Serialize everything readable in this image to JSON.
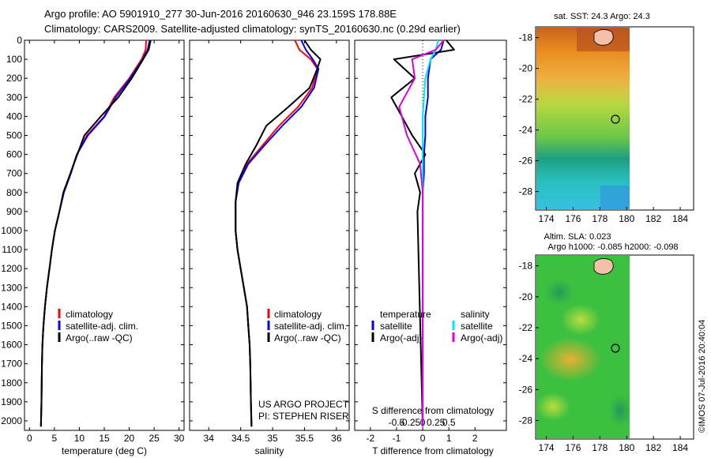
{
  "header": {
    "line1": "Argo profile: AO 5901910_277 30-Jun-2016 20160630_946 23.159S 178.88E",
    "line2": "Climatology: CARS2009. Satellite-adjusted climatology: synTS_20160630.nc (0.29d earlier)"
  },
  "colors": {
    "climatology": "#ff0000",
    "satellite": "#0000ff",
    "argo": "#000000",
    "salinity_satellite": "#00e5ee",
    "salinity_argo": "#dd00dd"
  },
  "panels": {
    "temperature": {
      "xlabel": "temperature (deg C)",
      "legend": [
        "climatology",
        "satellite-adj. clim.",
        "Argo(..raw -QC)"
      ]
    },
    "salinity": {
      "xlabel": "salinity",
      "legend": [
        "climatology",
        "satellite-adj. clim.",
        "Argo(..raw -QC)"
      ],
      "project": "US ARGO PROJECT",
      "pi": "PI: STEPHEN RISER"
    },
    "difference": {
      "xlabel": "T difference from climatology",
      "top_label": "S difference from climatology",
      "legend_temperature_title": "temperature",
      "legend_temperature": [
        "satellite",
        "Argo(-adj)"
      ],
      "legend_salinity_title": "salinity",
      "legend_salinity": [
        "satellite",
        "Argo(-adj)"
      ]
    },
    "map_sst": {
      "title": "sat. SST: 24.3  Argo: 24.3"
    },
    "map_sla": {
      "title1": "Altim. SLA: 0.023",
      "title2": "Argo h1000: -0.085 h2000: -0.098"
    }
  },
  "footer": {
    "credit": "©IMOS 07-Jul-2016 20:40:04"
  },
  "chart_data": [
    {
      "type": "line",
      "title": "",
      "xlabel": "temperature (deg C)",
      "ylabel": "",
      "xlim": [
        -1,
        31
      ],
      "ylim": [
        2050,
        0
      ],
      "xticks": [
        0,
        5,
        10,
        15,
        20,
        25,
        30
      ],
      "yticks": [
        0,
        100,
        200,
        300,
        400,
        500,
        600,
        700,
        800,
        900,
        1000,
        1100,
        1200,
        1300,
        1400,
        1500,
        1600,
        1700,
        1800,
        1900,
        2000
      ],
      "series": [
        {
          "name": "climatology",
          "x": [
            23.4,
            23.3,
            22.5,
            20.0,
            17.0,
            15.0,
            11.5,
            9.5,
            8.2,
            6.8,
            6.0,
            5.1,
            4.5,
            4.0,
            3.5,
            3.1,
            2.8,
            2.6,
            2.5,
            2.4,
            2.3
          ],
          "y": [
            0,
            50,
            100,
            200,
            300,
            400,
            500,
            600,
            700,
            800,
            900,
            1000,
            1100,
            1200,
            1300,
            1400,
            1500,
            1600,
            1700,
            1900,
            2030
          ]
        },
        {
          "name": "satellite-adj. clim.",
          "x": [
            24.1,
            23.7,
            22.7,
            20.2,
            17.3,
            15.1,
            11.7,
            9.5,
            8.3,
            6.9,
            6.0,
            5.1,
            4.5,
            4.0,
            3.5,
            3.1,
            2.8,
            2.6,
            2.5,
            2.4,
            2.3
          ],
          "y": [
            0,
            50,
            100,
            200,
            300,
            400,
            500,
            600,
            700,
            800,
            900,
            1000,
            1100,
            1200,
            1300,
            1400,
            1500,
            1600,
            1700,
            1900,
            2030
          ]
        },
        {
          "name": "Argo(..raw -QC)",
          "x": [
            24.3,
            23.9,
            22.8,
            20.5,
            17.8,
            14.3,
            11.0,
            9.6,
            8.2,
            6.8,
            6.0,
            5.1,
            4.5,
            4.0,
            3.5,
            3.1,
            2.8,
            2.6,
            2.5,
            2.4,
            2.3
          ],
          "y": [
            0,
            50,
            100,
            200,
            300,
            400,
            500,
            600,
            700,
            800,
            900,
            1000,
            1100,
            1200,
            1300,
            1400,
            1500,
            1600,
            1700,
            1900,
            2030
          ]
        }
      ]
    },
    {
      "type": "line",
      "xlabel": "salinity",
      "xlim": [
        33.7,
        36.2
      ],
      "ylim": [
        2050,
        0
      ],
      "xticks": [
        34,
        34.5,
        35,
        35.5,
        36
      ],
      "series": [
        {
          "name": "climatology",
          "x": [
            35.35,
            35.42,
            35.6,
            35.7,
            35.62,
            35.4,
            35.1,
            34.85,
            34.6,
            34.46,
            34.42,
            34.42,
            34.45,
            34.5,
            34.55,
            34.6,
            34.62,
            34.64,
            34.65,
            34.66,
            34.67
          ],
          "y": [
            0,
            50,
            100,
            150,
            250,
            350,
            450,
            550,
            650,
            750,
            850,
            1000,
            1100,
            1200,
            1300,
            1400,
            1500,
            1600,
            1700,
            1900,
            2030
          ]
        },
        {
          "name": "satellite-adj. clim.",
          "x": [
            35.45,
            35.52,
            35.63,
            35.72,
            35.65,
            35.45,
            35.15,
            34.88,
            34.62,
            34.47,
            34.42,
            34.42,
            34.45,
            34.5,
            34.55,
            34.6,
            34.62,
            34.64,
            34.65,
            34.66,
            34.67
          ],
          "y": [
            0,
            50,
            100,
            150,
            250,
            350,
            450,
            550,
            650,
            750,
            850,
            1000,
            1100,
            1200,
            1300,
            1400,
            1500,
            1600,
            1700,
            1900,
            2030
          ]
        },
        {
          "name": "Argo(..raw -QC)",
          "x": [
            35.5,
            35.6,
            35.75,
            35.7,
            35.58,
            35.25,
            34.9,
            34.75,
            34.58,
            34.45,
            34.42,
            34.42,
            34.45,
            34.5,
            34.55,
            34.6,
            34.62,
            34.64,
            34.65,
            34.66,
            34.67
          ],
          "y": [
            0,
            50,
            100,
            150,
            250,
            350,
            450,
            550,
            650,
            750,
            850,
            1000,
            1100,
            1200,
            1300,
            1400,
            1500,
            1600,
            1700,
            1900,
            2030
          ]
        }
      ]
    },
    {
      "type": "line",
      "xlabel": "T difference from climatology",
      "xlim": [
        -2.6,
        3.2
      ],
      "ylim": [
        2050,
        0
      ],
      "xticks": [
        -2,
        -1,
        0,
        1,
        2
      ],
      "top_xticks": [
        "-0.5",
        "-0.25",
        "0",
        "0.25",
        "0.5"
      ],
      "series": [
        {
          "name": "temperature satellite",
          "x": [
            0.8,
            0.7,
            0.3,
            0.2,
            0.2,
            0.1,
            0.1,
            0.05,
            0.05,
            0.0,
            0.0,
            0.0
          ],
          "y": [
            0,
            50,
            100,
            200,
            300,
            400,
            500,
            600,
            700,
            800,
            900,
            2030
          ]
        },
        {
          "name": "temperature Argo(-adj)",
          "x": [
            0.9,
            1.2,
            -1.1,
            -0.3,
            -1.2,
            -0.8,
            -0.4,
            0.1,
            -0.3,
            -0.1,
            -0.2,
            0.0
          ],
          "y": [
            0,
            50,
            100,
            200,
            300,
            400,
            500,
            600,
            700,
            800,
            900,
            2030
          ]
        },
        {
          "name": "salinity satellite",
          "x": [
            0.6,
            0.5,
            0.3,
            0.1,
            0.0,
            0.0,
            0.0,
            0.0
          ],
          "y": [
            0,
            50,
            100,
            200,
            400,
            600,
            800,
            2030
          ]
        },
        {
          "name": "salinity Argo(-adj)",
          "x": [
            0.8,
            0.5,
            -0.4,
            -0.3,
            -0.9,
            -0.6,
            -0.1,
            0.0,
            0.0
          ],
          "y": [
            0,
            50,
            100,
            200,
            350,
            500,
            650,
            800,
            2030
          ]
        }
      ]
    },
    {
      "type": "heatmap",
      "title": "sat. SST: 24.3  Argo: 24.3",
      "xticks": [
        174,
        176,
        178,
        180,
        182,
        184
      ],
      "yticks": [
        -18,
        -20,
        -22,
        -24,
        -26,
        -28
      ],
      "marker": {
        "lon": 178.88,
        "lat": -23.159
      }
    },
    {
      "type": "heatmap",
      "title": "Altim. SLA: 0.023",
      "xticks": [
        174,
        176,
        178,
        180,
        182,
        184
      ],
      "yticks": [
        -18,
        -20,
        -22,
        -24,
        -26,
        -28
      ],
      "marker": {
        "lon": 178.88,
        "lat": -23.159
      }
    }
  ]
}
